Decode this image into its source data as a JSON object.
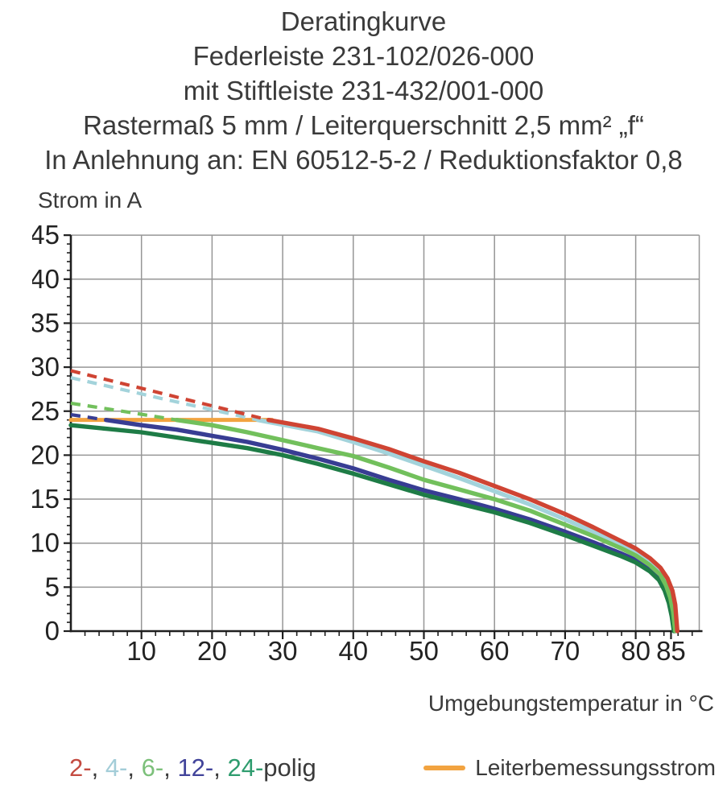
{
  "titles": [
    "Deratingkurve",
    "Federleiste 231-102/026-000",
    "mit Stiftleiste 231-432/001-000",
    "Rastermaß 5 mm / Leiterquerschnitt 2,5 mm² „f“",
    "In Anlehnung an: EN 60512-5-2 / Reduktionsfaktor 0,8"
  ],
  "chart_data": {
    "type": "line",
    "title": "Deratingkurve",
    "xlabel": "Umgebungstemperatur in °C",
    "ylabel": "Strom in A",
    "xlim": [
      0,
      89
    ],
    "ylim": [
      0,
      45
    ],
    "x_ticks_labeled": [
      10,
      20,
      30,
      40,
      50,
      60,
      70,
      80,
      85
    ],
    "x_minor_tick_step": 2,
    "x_gridlines": [
      10,
      20,
      30,
      40,
      50,
      60,
      70,
      80,
      89
    ],
    "y_ticks_labeled": [
      0,
      5,
      10,
      15,
      20,
      25,
      30,
      35,
      40,
      45
    ],
    "y_minor_tick_step": 1,
    "y_gridlines": [
      5,
      10,
      15,
      20,
      25,
      30,
      35,
      40,
      45
    ],
    "grid": true,
    "legend_position": "bottom",
    "series": [
      {
        "name": "2-polig",
        "poles": 2,
        "color": "#cf4433",
        "z": 5,
        "dashed_points": [
          [
            0,
            29.6
          ],
          [
            14,
            26.8
          ],
          [
            28,
            24.0
          ]
        ],
        "solid_points": [
          [
            28,
            24.0
          ],
          [
            35,
            23.0
          ],
          [
            40,
            21.9
          ],
          [
            45,
            20.7
          ],
          [
            50,
            19.3
          ],
          [
            55,
            18.0
          ],
          [
            60,
            16.5
          ],
          [
            65,
            15.0
          ],
          [
            70,
            13.3
          ],
          [
            74,
            11.8
          ],
          [
            78,
            10.2
          ],
          [
            80,
            9.4
          ],
          [
            82,
            8.3
          ],
          [
            83.5,
            7.2
          ],
          [
            84.5,
            6.0
          ],
          [
            85.2,
            4.6
          ],
          [
            85.6,
            3.0
          ],
          [
            85.9,
            0
          ]
        ]
      },
      {
        "name": "4-polig",
        "poles": 4,
        "color": "#a3d3db",
        "z": 1,
        "dashed_points": [
          [
            0,
            28.8
          ],
          [
            13,
            26.4
          ],
          [
            26.5,
            24.0
          ]
        ],
        "solid_points": [
          [
            26.5,
            24.0
          ],
          [
            35,
            22.7
          ],
          [
            40,
            21.5
          ],
          [
            45,
            20.2
          ],
          [
            50,
            18.8
          ],
          [
            55,
            17.4
          ],
          [
            60,
            15.9
          ],
          [
            65,
            14.4
          ],
          [
            70,
            12.7
          ],
          [
            74,
            11.3
          ],
          [
            78,
            9.8
          ],
          [
            80,
            9.0
          ],
          [
            82,
            7.9
          ],
          [
            83.5,
            6.8
          ],
          [
            84.4,
            5.6
          ],
          [
            85.0,
            4.2
          ],
          [
            85.4,
            2.6
          ],
          [
            85.7,
            0
          ]
        ]
      },
      {
        "name": "6-polig",
        "poles": 6,
        "color": "#72c05c",
        "z": 4,
        "dashed_points": [
          [
            0,
            25.9
          ],
          [
            8,
            24.9
          ],
          [
            15,
            24.0
          ]
        ],
        "solid_points": [
          [
            15,
            24.0
          ],
          [
            20,
            23.4
          ],
          [
            25,
            22.6
          ],
          [
            30,
            21.7
          ],
          [
            35,
            20.8
          ],
          [
            40,
            19.9
          ],
          [
            45,
            18.6
          ],
          [
            50,
            17.2
          ],
          [
            55,
            16.1
          ],
          [
            60,
            15.0
          ],
          [
            65,
            13.7
          ],
          [
            70,
            12.1
          ],
          [
            74,
            10.8
          ],
          [
            78,
            9.4
          ],
          [
            80,
            8.6
          ],
          [
            82,
            7.5
          ],
          [
            83.5,
            6.4
          ],
          [
            84.3,
            5.2
          ],
          [
            84.9,
            3.8
          ],
          [
            85.3,
            2.2
          ],
          [
            85.6,
            0
          ]
        ]
      },
      {
        "name": "12-polig",
        "poles": 12,
        "color": "#383d93",
        "z": 2,
        "dashed_points": [
          [
            0,
            24.6
          ],
          [
            5,
            24.0
          ]
        ],
        "solid_points": [
          [
            5,
            24.0
          ],
          [
            10,
            23.4
          ],
          [
            15,
            22.9
          ],
          [
            20,
            22.2
          ],
          [
            25,
            21.5
          ],
          [
            30,
            20.6
          ],
          [
            35,
            19.6
          ],
          [
            40,
            18.5
          ],
          [
            45,
            17.2
          ],
          [
            50,
            16.0
          ],
          [
            55,
            15.0
          ],
          [
            60,
            13.9
          ],
          [
            65,
            12.7
          ],
          [
            70,
            11.3
          ],
          [
            74,
            10.1
          ],
          [
            78,
            8.8
          ],
          [
            80,
            8.1
          ],
          [
            82,
            7.1
          ],
          [
            83.4,
            6.1
          ],
          [
            84.2,
            4.9
          ],
          [
            84.8,
            3.5
          ],
          [
            85.2,
            1.9
          ],
          [
            85.5,
            0
          ]
        ]
      },
      {
        "name": "24-polig",
        "poles": 24,
        "color": "#1e7c46",
        "z": 3,
        "solid_points": [
          [
            0,
            23.4
          ],
          [
            5,
            23.0
          ],
          [
            10,
            22.6
          ],
          [
            15,
            22.0
          ],
          [
            20,
            21.4
          ],
          [
            25,
            20.8
          ],
          [
            30,
            20.0
          ],
          [
            35,
            19.0
          ],
          [
            40,
            17.9
          ],
          [
            45,
            16.7
          ],
          [
            50,
            15.5
          ],
          [
            55,
            14.5
          ],
          [
            60,
            13.5
          ],
          [
            65,
            12.3
          ],
          [
            70,
            10.9
          ],
          [
            74,
            9.7
          ],
          [
            78,
            8.5
          ],
          [
            80,
            7.8
          ],
          [
            82,
            6.8
          ],
          [
            83.3,
            5.8
          ],
          [
            84.1,
            4.6
          ],
          [
            84.7,
            3.2
          ],
          [
            85.1,
            1.7
          ],
          [
            85.4,
            0
          ]
        ]
      }
    ],
    "reference_line": {
      "label": "Leiterbemessungsstrom",
      "value": 24.0,
      "x_start": 0,
      "x_end": 28.5,
      "color": "#f2a340"
    }
  },
  "legend": {
    "poles_items": [
      {
        "label": "2-",
        "color": "#c44b41"
      },
      {
        "label": "4-",
        "color": "#a3cdd8"
      },
      {
        "label": "6-",
        "color": "#7cc07a"
      },
      {
        "label": "12-",
        "color": "#41439a"
      },
      {
        "label": "24-",
        "color": "#2e9c6e"
      }
    ],
    "separator": ", ",
    "suffix": "polig",
    "suffix_color": "#3a3a3a"
  },
  "colors": {
    "grid": "#969696",
    "axis": "#1f1f1f",
    "tick_label": "#222222",
    "text": "#3a3a3a",
    "background": "#ffffff"
  }
}
